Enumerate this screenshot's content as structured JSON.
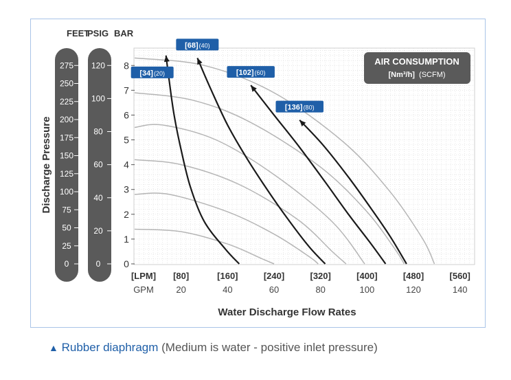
{
  "chart_data": {
    "type": "line",
    "xlabel": "Water Discharge Flow Rates",
    "ylabel": "Discharge Pressure",
    "x_units": {
      "lpm_label": "[LPM]",
      "gpm_label": "GPM"
    },
    "x_ticks_gpm": [
      20,
      40,
      60,
      80,
      100,
      120,
      140
    ],
    "x_ticks_lpm": [
      "[80]",
      "[160]",
      "[240]",
      "[320]",
      "[400]",
      "[480]",
      "[560]"
    ],
    "xlim_gpm": [
      0,
      146
    ],
    "y_units": {
      "feet": "FEET",
      "psig": "PSIG",
      "bar": "BAR"
    },
    "y_ticks_bar": [
      0,
      1,
      2,
      3,
      4,
      5,
      6,
      7,
      8
    ],
    "ylim_bar": [
      0,
      8.7
    ],
    "y_ticks_feet": [
      0,
      25,
      50,
      75,
      100,
      125,
      150,
      175,
      200,
      225,
      250,
      275
    ],
    "y_ticks_psig": [
      0,
      20,
      40,
      60,
      80,
      100,
      120
    ],
    "legend": {
      "title": "AIR CONSUMPTION",
      "units_a": "[Nm³/h]",
      "units_b": "(SCFM)",
      "placement": "top-right"
    },
    "air_consumption_curves": [
      {
        "label_nm3h": "[34]",
        "label_scfm": "(20)",
        "points": [
          [
            13.5,
            8.4
          ],
          [
            15,
            7.3
          ],
          [
            17,
            6.0
          ],
          [
            20,
            4.6
          ],
          [
            24,
            3.1
          ],
          [
            30,
            1.7
          ],
          [
            39,
            0.6
          ],
          [
            45,
            0
          ]
        ]
      },
      {
        "label_nm3h": "[68]",
        "label_scfm": "(40)",
        "points": [
          [
            27,
            8.3
          ],
          [
            33,
            7.0
          ],
          [
            40,
            5.6
          ],
          [
            48,
            4.3
          ],
          [
            57,
            3.0
          ],
          [
            66,
            1.8
          ],
          [
            75,
            0.7
          ],
          [
            82,
            0
          ]
        ]
      },
      {
        "label_nm3h": "[102]",
        "label_scfm": "(60)",
        "points": [
          [
            50,
            7.2
          ],
          [
            60,
            6.0
          ],
          [
            71,
            4.7
          ],
          [
            82,
            3.3
          ],
          [
            92,
            2.0
          ],
          [
            101,
            0.9
          ],
          [
            108,
            0
          ]
        ]
      },
      {
        "label_nm3h": "[136]",
        "label_scfm": "(80)",
        "points": [
          [
            71,
            5.8
          ],
          [
            81,
            4.8
          ],
          [
            92,
            3.5
          ],
          [
            102,
            2.2
          ],
          [
            110,
            1.1
          ],
          [
            117,
            0
          ]
        ]
      }
    ],
    "pressure_curves": [
      {
        "points": [
          [
            0,
            8.3
          ],
          [
            30,
            8.0
          ],
          [
            60,
            6.9
          ],
          [
            90,
            4.9
          ],
          [
            110,
            2.9
          ],
          [
            124,
            1.0
          ],
          [
            129,
            0
          ]
        ]
      },
      {
        "points": [
          [
            0,
            6.9
          ],
          [
            25,
            6.6
          ],
          [
            50,
            5.7
          ],
          [
            80,
            3.9
          ],
          [
            100,
            2.1
          ],
          [
            112,
            0.6
          ],
          [
            116,
            0
          ]
        ]
      },
      {
        "points": [
          [
            0,
            5.5
          ],
          [
            12,
            5.6
          ],
          [
            35,
            5.0
          ],
          [
            60,
            3.6
          ],
          [
            85,
            1.7
          ],
          [
            99,
            0
          ]
        ]
      },
      {
        "points": [
          [
            0,
            4.2
          ],
          [
            20,
            4.0
          ],
          [
            45,
            3.2
          ],
          [
            70,
            1.8
          ],
          [
            85,
            0.5
          ],
          [
            91,
            0
          ]
        ]
      },
      {
        "points": [
          [
            0,
            2.8
          ],
          [
            15,
            2.8
          ],
          [
            40,
            2.1
          ],
          [
            60,
            1.2
          ],
          [
            75,
            0.3
          ],
          [
            79,
            0
          ]
        ]
      },
      {
        "points": [
          [
            0,
            1.4
          ],
          [
            20,
            1.3
          ],
          [
            40,
            0.8
          ],
          [
            55,
            0.2
          ],
          [
            60,
            0
          ]
        ]
      }
    ]
  },
  "caption": {
    "marker": "▲",
    "label": "Rubber diaphragm",
    "note": "(Medium is water -  positive inlet pressure)"
  }
}
